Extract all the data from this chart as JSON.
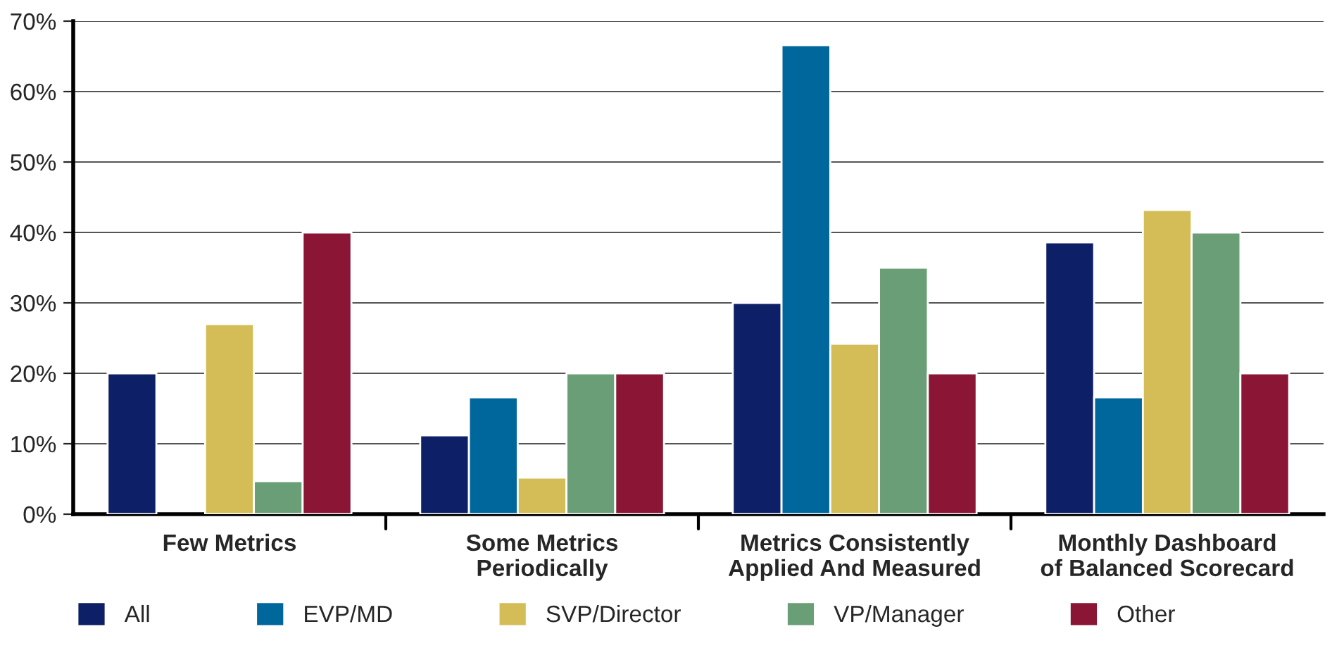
{
  "chart_data": {
    "type": "bar",
    "categories": [
      "Few Metrics",
      "Some Metrics\nPeriodically",
      "Metrics Consistently\nApplied And Measured",
      "Monthly Dashboard\nof Balanced Scorecard"
    ],
    "series": [
      {
        "name": "All",
        "color": "#0d1f66",
        "values": [
          20,
          11.2,
          30,
          38.6
        ]
      },
      {
        "name": "EVP/MD",
        "color": "#00679d",
        "values": [
          null,
          16.6,
          66.6,
          16.6
        ]
      },
      {
        "name": "SVP/Director",
        "color": "#d4bc56",
        "values": [
          27,
          5.2,
          24.2,
          43.2
        ]
      },
      {
        "name": "VP/Manager",
        "color": "#6a9e76",
        "values": [
          4.7,
          20,
          35,
          40
        ]
      },
      {
        "name": "Other",
        "color": "#8b1535",
        "values": [
          40,
          20,
          20,
          20
        ]
      }
    ],
    "ylim": [
      0,
      70
    ],
    "yticks": [
      {
        "value": 0,
        "label": "0%"
      },
      {
        "value": 10,
        "label": "10%"
      },
      {
        "value": 20,
        "label": "20%"
      },
      {
        "value": 30,
        "label": "30%"
      },
      {
        "value": 40,
        "label": "40%"
      },
      {
        "value": 50,
        "label": "50%"
      },
      {
        "value": 60,
        "label": "60%"
      },
      {
        "value": 70,
        "label": "70%"
      }
    ],
    "grid": "y",
    "legend": "bottom"
  }
}
